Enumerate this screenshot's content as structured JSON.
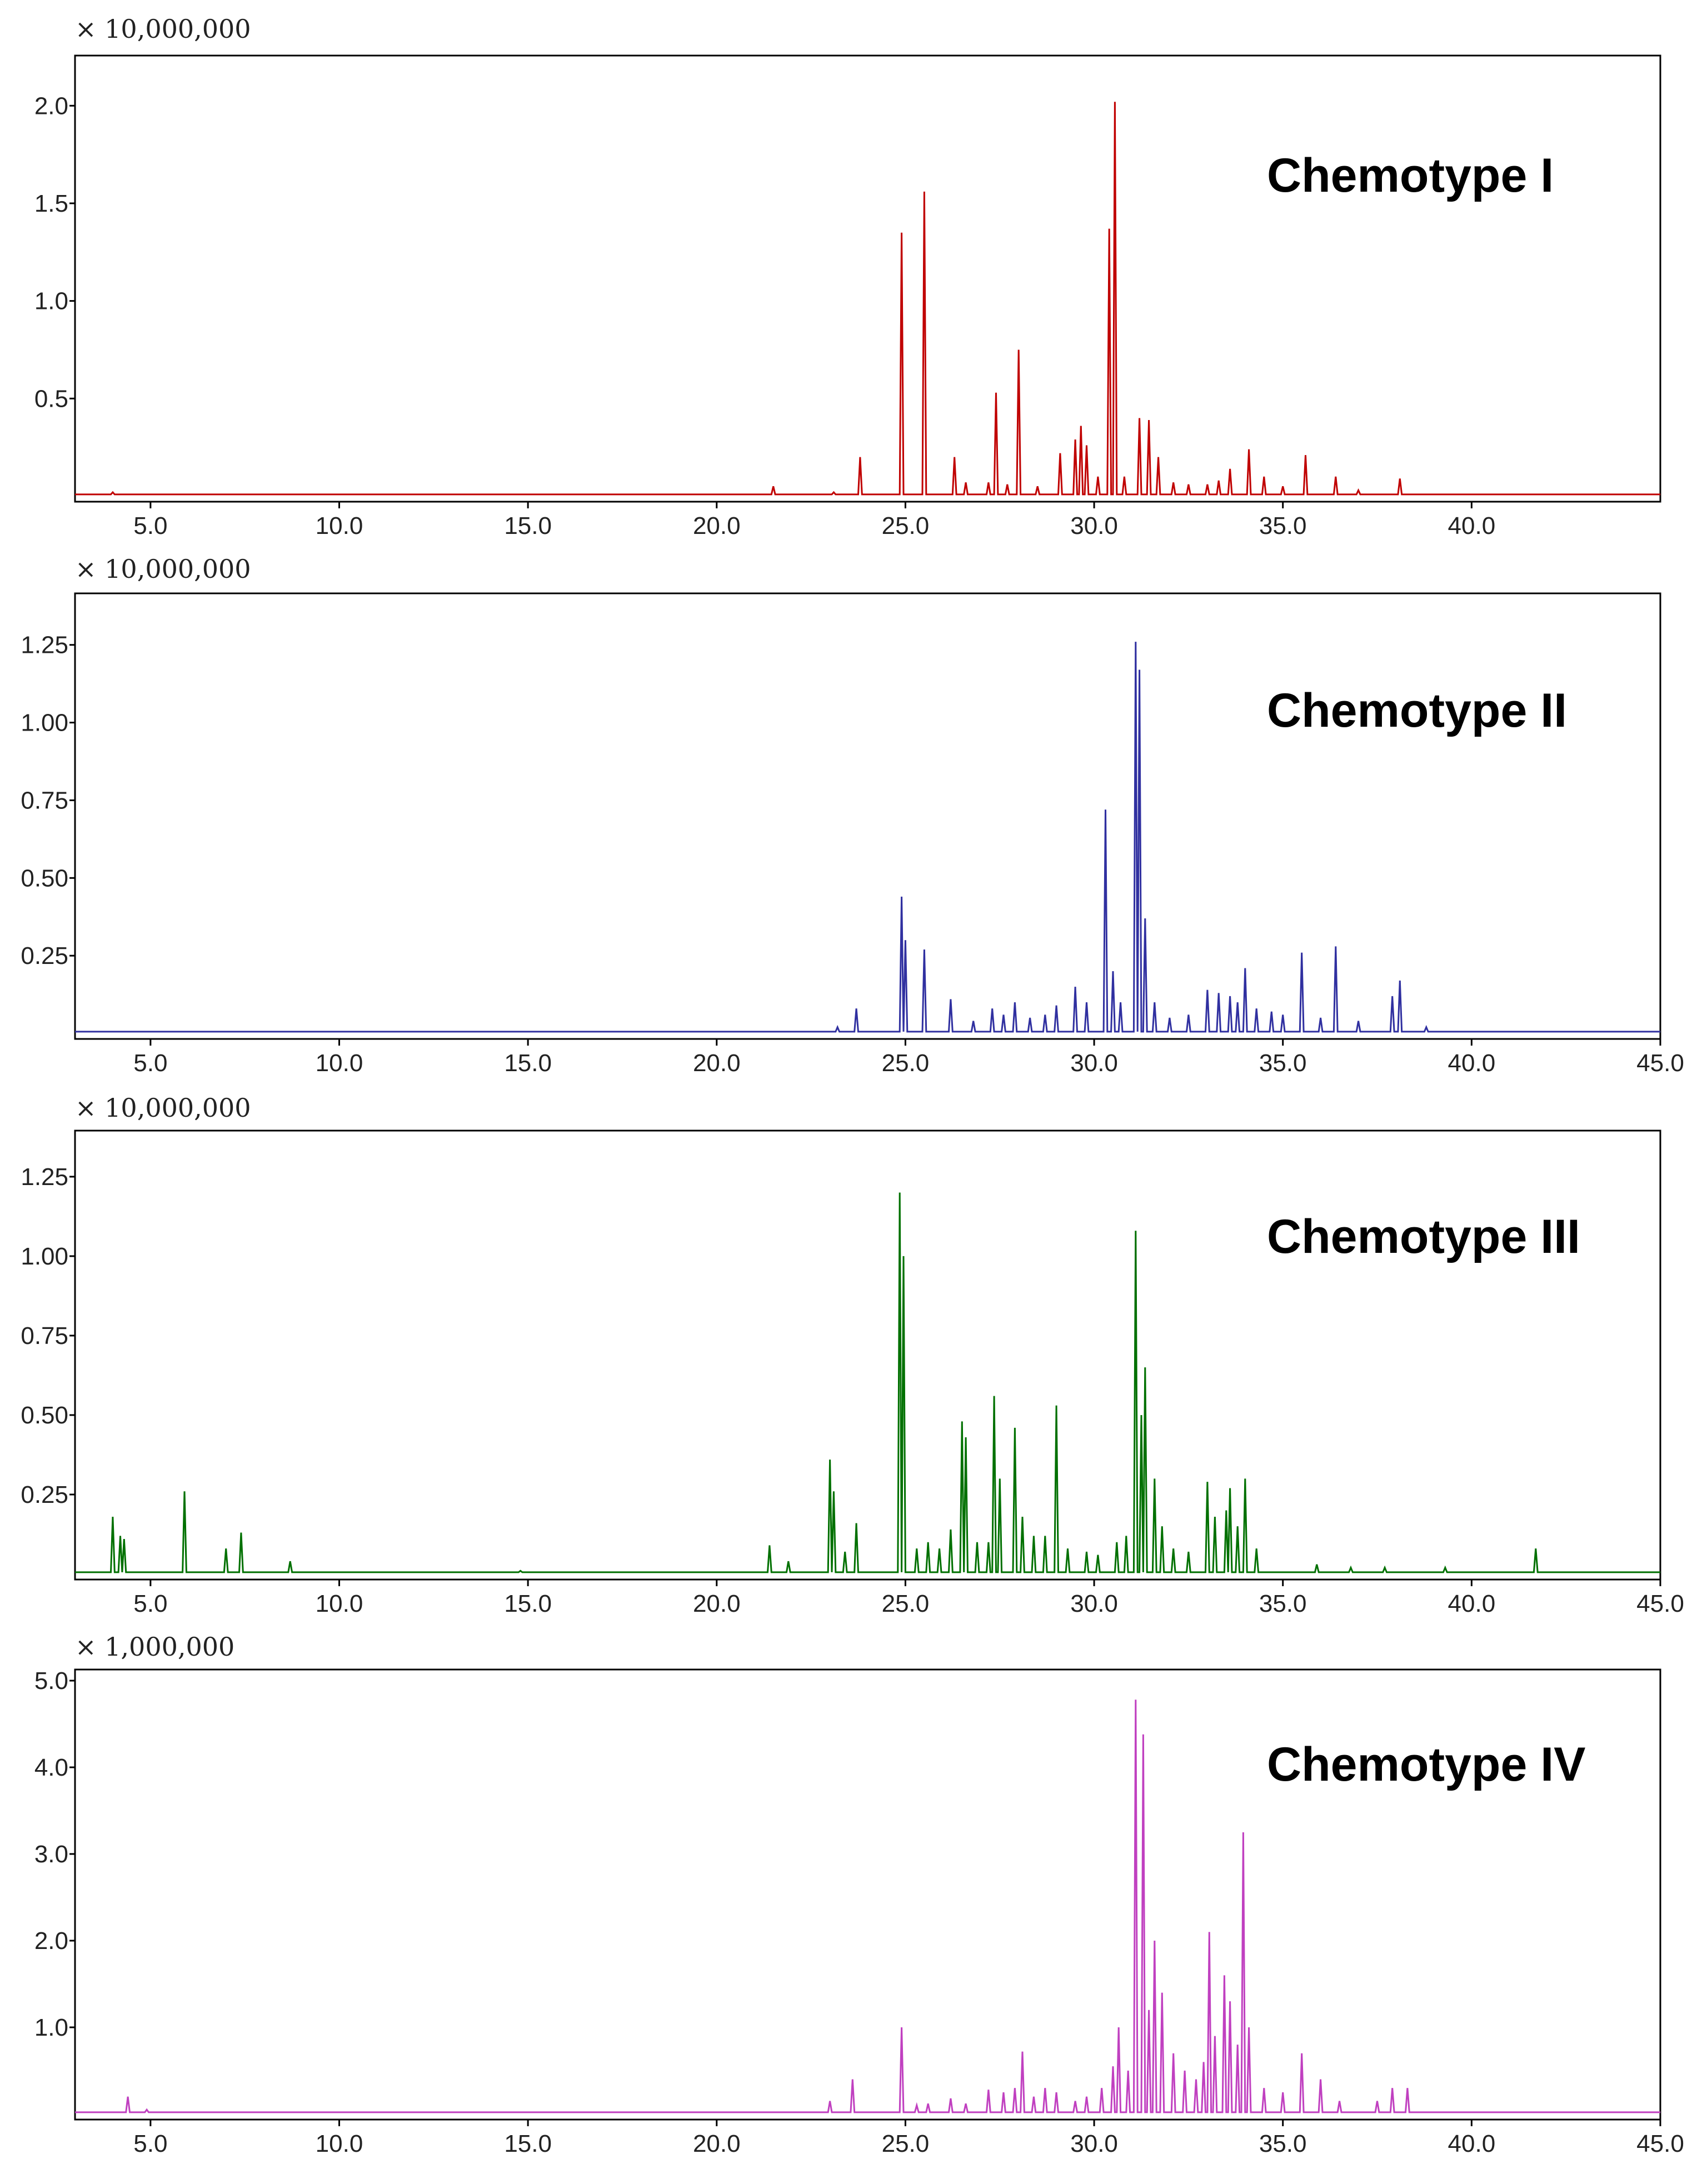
{
  "figure": {
    "description_type": "gas chromatograms (TIC) of four chemotypes"
  },
  "chart_data": [
    {
      "type": "line",
      "title": "Chemotype I",
      "color": "#c00000",
      "y_scale_label": "× 10,000,000",
      "xlim": [
        3.0,
        45.0
      ],
      "ylim": [
        0,
        2.2
      ],
      "x_ticks": [
        5.0,
        10.0,
        15.0,
        20.0,
        25.0,
        30.0,
        35.0,
        40.0
      ],
      "x_tick_labels": [
        "5.0",
        "10.0",
        "15.0",
        "20.0",
        "25.0",
        "30.0",
        "35.0",
        "40.0"
      ],
      "y_ticks": [
        0.5,
        1.0,
        1.5,
        2.0
      ],
      "y_tick_labels": [
        "0.5",
        "1.0",
        "1.5",
        "2.0"
      ],
      "peaks": [
        [
          4.0,
          0.02
        ],
        [
          21.5,
          0.05
        ],
        [
          23.1,
          0.02
        ],
        [
          23.8,
          0.2
        ],
        [
          24.9,
          1.35
        ],
        [
          25.5,
          1.56
        ],
        [
          26.3,
          0.2
        ],
        [
          26.6,
          0.07
        ],
        [
          27.2,
          0.07
        ],
        [
          27.4,
          0.53
        ],
        [
          27.7,
          0.06
        ],
        [
          28.0,
          0.75
        ],
        [
          28.5,
          0.05
        ],
        [
          29.1,
          0.22
        ],
        [
          29.5,
          0.29
        ],
        [
          29.65,
          0.36
        ],
        [
          29.8,
          0.26
        ],
        [
          30.1,
          0.1
        ],
        [
          30.4,
          1.37
        ],
        [
          30.55,
          2.02
        ],
        [
          30.8,
          0.1
        ],
        [
          31.2,
          0.4
        ],
        [
          31.45,
          0.39
        ],
        [
          31.7,
          0.2
        ],
        [
          32.1,
          0.07
        ],
        [
          32.5,
          0.06
        ],
        [
          33.0,
          0.06
        ],
        [
          33.3,
          0.08
        ],
        [
          33.6,
          0.14
        ],
        [
          34.1,
          0.24
        ],
        [
          34.5,
          0.1
        ],
        [
          35.0,
          0.05
        ],
        [
          35.6,
          0.21
        ],
        [
          36.4,
          0.1
        ],
        [
          37.0,
          0.03
        ],
        [
          38.1,
          0.09
        ]
      ]
    },
    {
      "type": "line",
      "title": "Chemotype II",
      "color": "#3030a0",
      "y_scale_label": "× 10,000,000",
      "xlim": [
        3.0,
        45.0
      ],
      "ylim": [
        0,
        1.38
      ],
      "x_ticks": [
        5.0,
        10.0,
        15.0,
        20.0,
        25.0,
        30.0,
        35.0,
        40.0,
        45.0
      ],
      "x_tick_labels": [
        "5.0",
        "10.0",
        "15.0",
        "20.0",
        "25.0",
        "30.0",
        "35.0",
        "40.0",
        "45.0"
      ],
      "y_ticks": [
        0.25,
        0.5,
        0.75,
        1.0,
        1.25
      ],
      "y_tick_labels": [
        "0.25",
        "0.50",
        "0.75",
        "1.00",
        "1.25"
      ],
      "peaks": [
        [
          23.2,
          0.02
        ],
        [
          23.7,
          0.08
        ],
        [
          24.9,
          0.44
        ],
        [
          25.0,
          0.3
        ],
        [
          25.5,
          0.27
        ],
        [
          26.2,
          0.11
        ],
        [
          26.8,
          0.04
        ],
        [
          27.3,
          0.08
        ],
        [
          27.6,
          0.06
        ],
        [
          27.9,
          0.1
        ],
        [
          28.3,
          0.05
        ],
        [
          28.7,
          0.06
        ],
        [
          29.0,
          0.09
        ],
        [
          29.5,
          0.15
        ],
        [
          29.8,
          0.1
        ],
        [
          30.3,
          0.72
        ],
        [
          30.5,
          0.2
        ],
        [
          30.7,
          0.1
        ],
        [
          31.1,
          1.26
        ],
        [
          31.2,
          1.17
        ],
        [
          31.35,
          0.37
        ],
        [
          31.6,
          0.1
        ],
        [
          32.0,
          0.05
        ],
        [
          32.5,
          0.06
        ],
        [
          33.0,
          0.14
        ],
        [
          33.3,
          0.13
        ],
        [
          33.6,
          0.12
        ],
        [
          33.8,
          0.1
        ],
        [
          34.0,
          0.21
        ],
        [
          34.3,
          0.08
        ],
        [
          34.7,
          0.07
        ],
        [
          35.0,
          0.06
        ],
        [
          35.5,
          0.26
        ],
        [
          36.0,
          0.05
        ],
        [
          36.4,
          0.28
        ],
        [
          37.0,
          0.04
        ],
        [
          37.9,
          0.12
        ],
        [
          38.1,
          0.17
        ],
        [
          38.8,
          0.02
        ]
      ]
    },
    {
      "type": "line",
      "title": "Chemotype III",
      "color": "#007000",
      "y_scale_label": "× 10,000,000",
      "xlim": [
        3.0,
        45.0
      ],
      "ylim": [
        0,
        1.36
      ],
      "x_ticks": [
        5.0,
        10.0,
        15.0,
        20.0,
        25.0,
        30.0,
        35.0,
        40.0,
        45.0
      ],
      "x_tick_labels": [
        "5.0",
        "10.0",
        "15.0",
        "20.0",
        "25.0",
        "30.0",
        "35.0",
        "40.0",
        "45.0"
      ],
      "y_ticks": [
        0.25,
        0.5,
        0.75,
        1.0,
        1.25
      ],
      "y_tick_labels": [
        "0.25",
        "0.50",
        "0.75",
        "1.00",
        "1.25"
      ],
      "peaks": [
        [
          4.0,
          0.18
        ],
        [
          4.2,
          0.12
        ],
        [
          4.3,
          0.11
        ],
        [
          5.9,
          0.26
        ],
        [
          7.0,
          0.08
        ],
        [
          7.4,
          0.13
        ],
        [
          8.7,
          0.04
        ],
        [
          14.8,
          0.01
        ],
        [
          21.4,
          0.09
        ],
        [
          21.9,
          0.04
        ],
        [
          23.0,
          0.36
        ],
        [
          23.1,
          0.26
        ],
        [
          23.4,
          0.07
        ],
        [
          23.7,
          0.16
        ],
        [
          24.85,
          1.2
        ],
        [
          24.95,
          1.0
        ],
        [
          25.3,
          0.08
        ],
        [
          25.6,
          0.1
        ],
        [
          25.9,
          0.08
        ],
        [
          26.2,
          0.14
        ],
        [
          26.5,
          0.48
        ],
        [
          26.6,
          0.43
        ],
        [
          26.9,
          0.1
        ],
        [
          27.2,
          0.1
        ],
        [
          27.35,
          0.56
        ],
        [
          27.5,
          0.3
        ],
        [
          27.9,
          0.46
        ],
        [
          28.1,
          0.18
        ],
        [
          28.4,
          0.12
        ],
        [
          28.7,
          0.12
        ],
        [
          29.0,
          0.53
        ],
        [
          29.3,
          0.08
        ],
        [
          29.8,
          0.07
        ],
        [
          30.1,
          0.06
        ],
        [
          30.6,
          0.1
        ],
        [
          30.85,
          0.12
        ],
        [
          31.1,
          1.08
        ],
        [
          31.25,
          0.5
        ],
        [
          31.35,
          0.65
        ],
        [
          31.6,
          0.3
        ],
        [
          31.8,
          0.15
        ],
        [
          32.1,
          0.08
        ],
        [
          32.5,
          0.07
        ],
        [
          33.0,
          0.29
        ],
        [
          33.2,
          0.18
        ],
        [
          33.5,
          0.2
        ],
        [
          33.6,
          0.27
        ],
        [
          33.8,
          0.15
        ],
        [
          34.0,
          0.3
        ],
        [
          34.3,
          0.08
        ],
        [
          35.9,
          0.03
        ],
        [
          36.8,
          0.02
        ],
        [
          37.7,
          0.02
        ],
        [
          39.3,
          0.02
        ],
        [
          41.7,
          0.08
        ]
      ]
    },
    {
      "type": "line",
      "title": "Chemotype IV",
      "color": "#c040c0",
      "y_scale_label": "× 1,000,000",
      "xlim": [
        3.0,
        45.0
      ],
      "ylim": [
        0,
        5.0
      ],
      "x_ticks": [
        5.0,
        10.0,
        15.0,
        20.0,
        25.0,
        30.0,
        35.0,
        40.0,
        45.0
      ],
      "x_tick_labels": [
        "5.0",
        "10.0",
        "15.0",
        "20.0",
        "25.0",
        "30.0",
        "35.0",
        "40.0",
        "45.0"
      ],
      "y_ticks": [
        1.0,
        2.0,
        3.0,
        4.0,
        5.0
      ],
      "y_tick_labels": [
        "1.0",
        "2.0",
        "3.0",
        "4.0",
        "5.0"
      ],
      "peaks": [
        [
          4.4,
          0.2
        ],
        [
          4.9,
          0.05
        ],
        [
          23.0,
          0.15
        ],
        [
          23.6,
          0.4
        ],
        [
          24.9,
          1.0
        ],
        [
          25.3,
          0.1
        ],
        [
          25.6,
          0.12
        ],
        [
          26.2,
          0.18
        ],
        [
          26.6,
          0.12
        ],
        [
          27.2,
          0.28
        ],
        [
          27.6,
          0.25
        ],
        [
          27.9,
          0.3
        ],
        [
          28.1,
          0.72
        ],
        [
          28.4,
          0.2
        ],
        [
          28.7,
          0.3
        ],
        [
          29.0,
          0.25
        ],
        [
          29.5,
          0.15
        ],
        [
          29.8,
          0.2
        ],
        [
          30.2,
          0.3
        ],
        [
          30.5,
          0.55
        ],
        [
          30.65,
          1.0
        ],
        [
          30.9,
          0.5
        ],
        [
          31.1,
          4.78
        ],
        [
          31.3,
          4.38
        ],
        [
          31.45,
          1.2
        ],
        [
          31.6,
          2.0
        ],
        [
          31.8,
          1.4
        ],
        [
          32.1,
          0.7
        ],
        [
          32.4,
          0.5
        ],
        [
          32.7,
          0.4
        ],
        [
          32.9,
          0.6
        ],
        [
          33.05,
          2.1
        ],
        [
          33.2,
          0.9
        ],
        [
          33.45,
          1.6
        ],
        [
          33.6,
          1.3
        ],
        [
          33.8,
          0.8
        ],
        [
          33.95,
          3.25
        ],
        [
          34.1,
          1.0
        ],
        [
          34.5,
          0.3
        ],
        [
          35.0,
          0.25
        ],
        [
          35.5,
          0.7
        ],
        [
          36.0,
          0.4
        ],
        [
          36.5,
          0.15
        ],
        [
          37.5,
          0.15
        ],
        [
          37.9,
          0.3
        ],
        [
          38.3,
          0.3
        ]
      ]
    }
  ]
}
